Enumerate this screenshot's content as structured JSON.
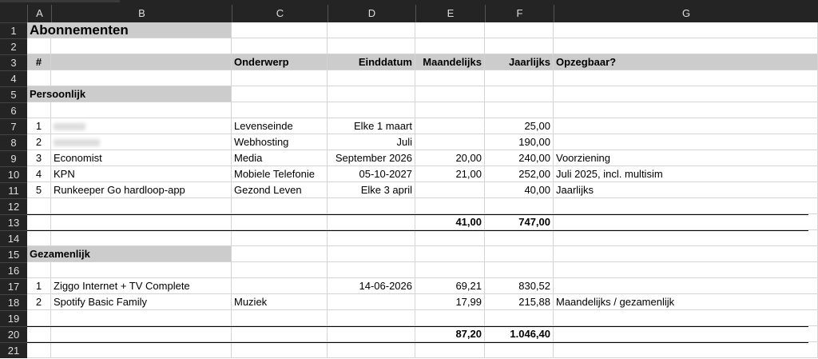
{
  "columns": [
    "A",
    "B",
    "C",
    "D",
    "E",
    "F",
    "G"
  ],
  "rows": [
    {
      "n": "1",
      "cells": [
        "Abonnementen",
        "",
        "",
        "",
        "",
        "",
        ""
      ]
    },
    {
      "n": "2",
      "cells": [
        "",
        "",
        "",
        "",
        "",
        "",
        ""
      ]
    },
    {
      "n": "3",
      "cells": [
        "#",
        "",
        "Onderwerp",
        "Einddatum",
        "Maandelijks",
        "Jaarlijks",
        "Opzegbaar?"
      ]
    },
    {
      "n": "4",
      "cells": [
        "",
        "",
        "",
        "",
        "",
        "",
        ""
      ]
    },
    {
      "n": "5",
      "cells": [
        "Persoonlijk",
        "",
        "",
        "",
        "",
        "",
        ""
      ]
    },
    {
      "n": "6",
      "cells": [
        "",
        "",
        "",
        "",
        "",
        "",
        ""
      ]
    },
    {
      "n": "7",
      "cells": [
        "1",
        "",
        "Levenseinde",
        "Elke 1 maart",
        "",
        "25,00",
        ""
      ]
    },
    {
      "n": "8",
      "cells": [
        "2",
        "",
        "Webhosting",
        "Juli",
        "",
        "190,00",
        ""
      ]
    },
    {
      "n": "9",
      "cells": [
        "3",
        "Economist",
        "Media",
        "September 2026",
        "20,00",
        "240,00",
        "Voorziening"
      ]
    },
    {
      "n": "10",
      "cells": [
        "4",
        "KPN",
        "Mobiele Telefonie",
        "05-10-2027",
        "21,00",
        "252,00",
        "Juli 2025, incl. multisim"
      ]
    },
    {
      "n": "11",
      "cells": [
        "5",
        "Runkeeper Go hardloop-app",
        "Gezond Leven",
        "Elke 3 april",
        "",
        "40,00",
        "Jaarlijks"
      ]
    },
    {
      "n": "12",
      "cells": [
        "",
        "",
        "",
        "",
        "",
        "",
        ""
      ]
    },
    {
      "n": "13",
      "cells": [
        "",
        "",
        "",
        "",
        "41,00",
        "747,00",
        ""
      ]
    },
    {
      "n": "14",
      "cells": [
        "",
        "",
        "",
        "",
        "",
        "",
        ""
      ]
    },
    {
      "n": "15",
      "cells": [
        "Gezamenlijk",
        "",
        "",
        "",
        "",
        "",
        ""
      ]
    },
    {
      "n": "16",
      "cells": [
        "",
        "",
        "",
        "",
        "",
        "",
        ""
      ]
    },
    {
      "n": "17",
      "cells": [
        "1",
        "Ziggo Internet + TV Complete",
        "",
        "14-06-2026",
        "69,21",
        "830,52",
        ""
      ]
    },
    {
      "n": "18",
      "cells": [
        "2",
        "Spotify Basic Family",
        "Muziek",
        "",
        "17,99",
        "215,88",
        "Maandelijks / gezamenlijk"
      ]
    },
    {
      "n": "19",
      "cells": [
        "",
        "",
        "",
        "",
        "",
        "",
        ""
      ]
    },
    {
      "n": "20",
      "cells": [
        "",
        "",
        "",
        "",
        "87,20",
        "1.046,40",
        ""
      ]
    },
    {
      "n": "21",
      "cells": [
        "",
        "",
        "",
        "",
        "",
        "",
        ""
      ]
    }
  ],
  "colors": {
    "header_bg": "#242424",
    "section_fill": "#cccccc"
  }
}
